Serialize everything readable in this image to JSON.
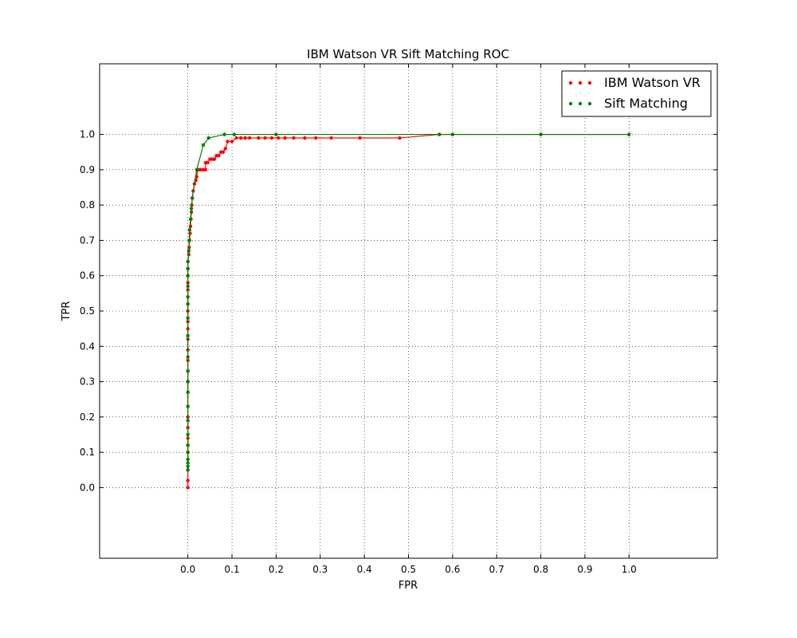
{
  "chart_data": {
    "type": "line",
    "title": "IBM Watson VR Sift Matching ROC",
    "xlabel": "FPR",
    "ylabel": "TPR",
    "xlim": [
      -0.2,
      1.2
    ],
    "ylim": [
      -0.2,
      1.2
    ],
    "xticks": [
      0.0,
      0.1,
      0.2,
      0.3,
      0.4,
      0.5,
      0.6,
      0.7,
      0.8,
      0.9,
      1.0
    ],
    "yticks": [
      0.0,
      0.1,
      0.2,
      0.3,
      0.4,
      0.5,
      0.6,
      0.7,
      0.8,
      0.9,
      1.0
    ],
    "xtick_labels": [
      "0.0",
      "0.1",
      "0.2",
      "0.3",
      "0.4",
      "0.5",
      "0.6",
      "0.7",
      "0.8",
      "0.9",
      "1.0"
    ],
    "ytick_labels": [
      "0.0",
      "0.1",
      "0.2",
      "0.3",
      "0.4",
      "0.5",
      "0.6",
      "0.7",
      "0.8",
      "0.9",
      "1.0"
    ],
    "grid": true,
    "legend_position": "top-right",
    "series": [
      {
        "name": "IBM Watson VR",
        "color": "#ff0000",
        "x": [
          0.0,
          0.0,
          0.0,
          0.0,
          0.0,
          0.0,
          0.0,
          0.0,
          0.0,
          0.0,
          0.0,
          0.0,
          0.0,
          0.0,
          0.0,
          0.0,
          0.0,
          0.0,
          0.0,
          0.0,
          0.0,
          0.0,
          0.0,
          0.0,
          0.0,
          0.0,
          0.002,
          0.003,
          0.004,
          0.005,
          0.006,
          0.007,
          0.008,
          0.009,
          0.01,
          0.012,
          0.015,
          0.018,
          0.02,
          0.022,
          0.025,
          0.03,
          0.035,
          0.04,
          0.04,
          0.045,
          0.05,
          0.055,
          0.06,
          0.065,
          0.07,
          0.075,
          0.08,
          0.085,
          0.09,
          0.1,
          0.11,
          0.12,
          0.13,
          0.14,
          0.16,
          0.175,
          0.19,
          0.205,
          0.22,
          0.24,
          0.265,
          0.29,
          0.325,
          0.39,
          0.48,
          0.57,
          0.6,
          0.8,
          1.0
        ],
        "y": [
          0.0,
          0.02,
          0.05,
          0.08,
          0.1,
          0.12,
          0.14,
          0.17,
          0.2,
          0.23,
          0.27,
          0.3,
          0.33,
          0.36,
          0.39,
          0.42,
          0.45,
          0.47,
          0.5,
          0.52,
          0.54,
          0.56,
          0.58,
          0.6,
          0.62,
          0.64,
          0.66,
          0.68,
          0.7,
          0.72,
          0.74,
          0.76,
          0.78,
          0.8,
          0.82,
          0.84,
          0.86,
          0.87,
          0.88,
          0.9,
          0.9,
          0.9,
          0.9,
          0.9,
          0.92,
          0.92,
          0.93,
          0.93,
          0.93,
          0.94,
          0.94,
          0.95,
          0.95,
          0.96,
          0.98,
          0.98,
          0.99,
          0.99,
          0.99,
          0.99,
          0.99,
          0.99,
          0.99,
          0.99,
          0.99,
          0.99,
          0.99,
          0.99,
          0.99,
          0.99,
          0.99,
          1.0,
          1.0,
          1.0,
          1.0
        ]
      },
      {
        "name": "Sift Matching",
        "color": "#008000",
        "x": [
          0.0,
          0.0,
          0.0,
          0.0,
          0.0,
          0.0,
          0.0,
          0.0,
          0.0,
          0.0,
          0.0,
          0.0,
          0.0,
          0.0,
          0.0,
          0.0,
          0.0,
          0.0,
          0.0,
          0.0,
          0.0,
          0.002,
          0.003,
          0.004,
          0.006,
          0.008,
          0.01,
          0.02,
          0.035,
          0.047,
          0.083,
          0.105,
          0.2,
          0.57,
          0.6,
          0.8,
          1.0
        ],
        "y": [
          0.05,
          0.06,
          0.07,
          0.08,
          0.1,
          0.12,
          0.15,
          0.19,
          0.23,
          0.27,
          0.3,
          0.33,
          0.37,
          0.43,
          0.48,
          0.52,
          0.54,
          0.57,
          0.6,
          0.62,
          0.64,
          0.67,
          0.7,
          0.73,
          0.76,
          0.79,
          0.82,
          0.9,
          0.97,
          0.99,
          1.0,
          1.0,
          1.0,
          1.0,
          1.0,
          1.0,
          1.0
        ]
      }
    ]
  }
}
